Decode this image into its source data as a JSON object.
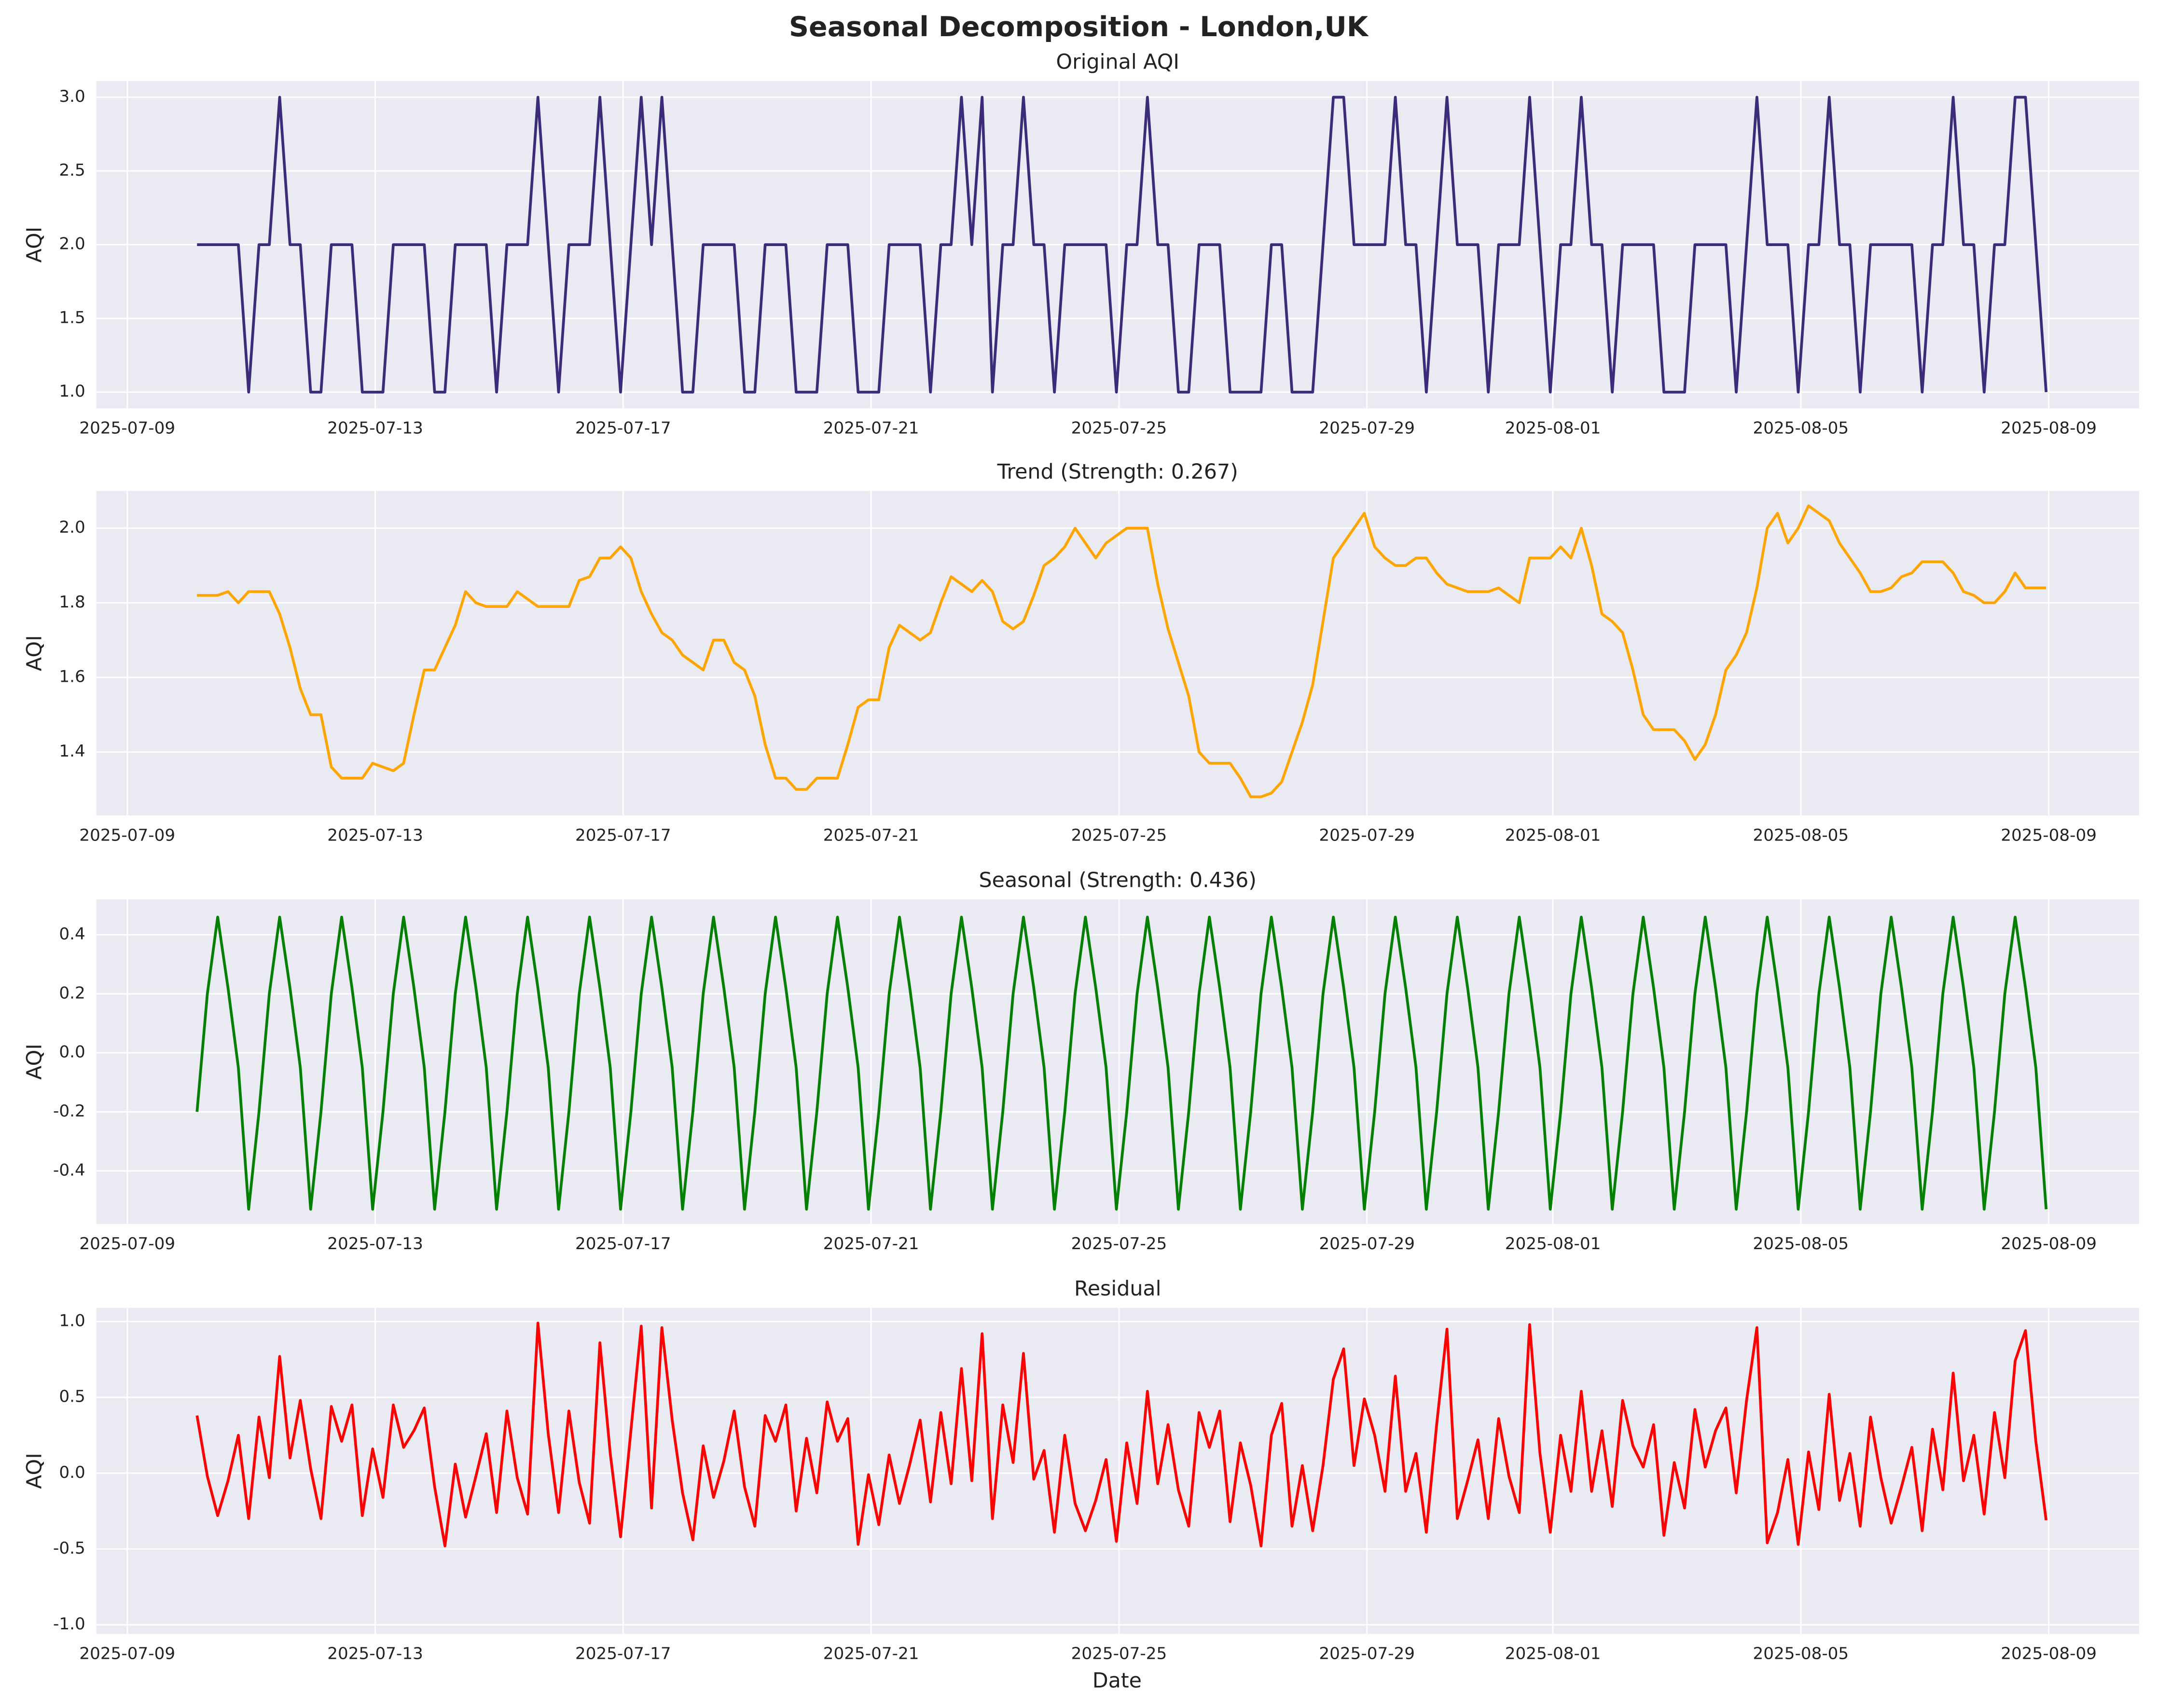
{
  "chart_data": {
    "title": "Seasonal Decomposition - London,UK",
    "xlabel": "Date",
    "grid": true,
    "xlim": [
      "2025-07-08 12:00",
      "2025-08-10 11:00"
    ],
    "xticks": [
      "2025-07-09",
      "2025-07-13",
      "2025-07-17",
      "2025-07-21",
      "2025-07-25",
      "2025-07-29",
      "2025-08-01",
      "2025-08-05",
      "2025-08-09"
    ],
    "x": [
      "2025-07-10 03:00",
      "2025-07-10 07:00",
      "2025-07-10 11:00",
      "2025-07-10 15:00",
      "2025-07-10 19:00",
      "2025-07-10 23:00",
      "2025-07-11 03:00",
      "2025-07-11 07:00",
      "2025-07-11 11:00",
      "2025-07-11 15:00",
      "2025-07-11 19:00",
      "2025-07-11 23:00",
      "2025-07-12 03:00",
      "2025-07-12 07:00",
      "2025-07-12 11:00",
      "2025-07-12 15:00",
      "2025-07-12 19:00",
      "2025-07-12 23:00",
      "2025-07-13 03:00",
      "2025-07-13 07:00",
      "2025-07-13 11:00",
      "2025-07-13 15:00",
      "2025-07-13 19:00",
      "2025-07-13 23:00",
      "2025-07-14 03:00",
      "2025-07-14 07:00",
      "2025-07-14 11:00",
      "2025-07-14 15:00",
      "2025-07-14 19:00",
      "2025-07-14 23:00",
      "2025-07-15 03:00",
      "2025-07-15 07:00",
      "2025-07-15 11:00",
      "2025-07-15 15:00",
      "2025-07-15 19:00",
      "2025-07-15 23:00",
      "2025-07-16 03:00",
      "2025-07-16 07:00",
      "2025-07-16 11:00",
      "2025-07-16 15:00",
      "2025-07-16 19:00",
      "2025-07-16 23:00",
      "2025-07-17 03:00",
      "2025-07-17 07:00",
      "2025-07-17 11:00",
      "2025-07-17 15:00",
      "2025-07-17 19:00",
      "2025-07-17 23:00",
      "2025-07-18 03:00",
      "2025-07-18 07:00",
      "2025-07-18 11:00",
      "2025-07-18 15:00",
      "2025-07-18 19:00",
      "2025-07-18 23:00",
      "2025-07-19 03:00",
      "2025-07-19 07:00",
      "2025-07-19 11:00",
      "2025-07-19 15:00",
      "2025-07-19 19:00",
      "2025-07-19 23:00",
      "2025-07-20 03:00",
      "2025-07-20 07:00",
      "2025-07-20 11:00",
      "2025-07-20 15:00",
      "2025-07-20 19:00",
      "2025-07-20 23:00",
      "2025-07-21 03:00",
      "2025-07-21 07:00",
      "2025-07-21 11:00",
      "2025-07-21 15:00",
      "2025-07-21 19:00",
      "2025-07-21 23:00",
      "2025-07-22 03:00",
      "2025-07-22 07:00",
      "2025-07-22 11:00",
      "2025-07-22 15:00",
      "2025-07-22 19:00",
      "2025-07-22 23:00",
      "2025-07-23 03:00",
      "2025-07-23 07:00",
      "2025-07-23 11:00",
      "2025-07-23 15:00",
      "2025-07-23 19:00",
      "2025-07-23 23:00",
      "2025-07-24 03:00",
      "2025-07-24 07:00",
      "2025-07-24 11:00",
      "2025-07-24 15:00",
      "2025-07-24 19:00",
      "2025-07-24 23:00",
      "2025-07-25 03:00",
      "2025-07-25 07:00",
      "2025-07-25 11:00",
      "2025-07-25 15:00",
      "2025-07-25 19:00",
      "2025-07-25 23:00",
      "2025-07-26 03:00",
      "2025-07-26 07:00",
      "2025-07-26 11:00",
      "2025-07-26 15:00",
      "2025-07-26 19:00",
      "2025-07-26 23:00",
      "2025-07-27 03:00",
      "2025-07-27 07:00",
      "2025-07-27 11:00",
      "2025-07-27 15:00",
      "2025-07-27 19:00",
      "2025-07-27 23:00",
      "2025-07-28 03:00",
      "2025-07-28 07:00",
      "2025-07-28 11:00",
      "2025-07-28 15:00",
      "2025-07-28 19:00",
      "2025-07-28 23:00",
      "2025-07-29 03:00",
      "2025-07-29 07:00",
      "2025-07-29 11:00",
      "2025-07-29 15:00",
      "2025-07-29 19:00",
      "2025-07-29 23:00",
      "2025-07-30 03:00",
      "2025-07-30 07:00",
      "2025-07-30 11:00",
      "2025-07-30 15:00",
      "2025-07-30 19:00",
      "2025-07-30 23:00",
      "2025-07-31 03:00",
      "2025-07-31 07:00",
      "2025-07-31 11:00",
      "2025-07-31 15:00",
      "2025-07-31 19:00",
      "2025-07-31 23:00",
      "2025-08-01 03:00",
      "2025-08-01 07:00",
      "2025-08-01 11:00",
      "2025-08-01 15:00",
      "2025-08-01 19:00",
      "2025-08-01 23:00",
      "2025-08-02 03:00",
      "2025-08-02 07:00",
      "2025-08-02 11:00",
      "2025-08-02 15:00",
      "2025-08-02 19:00",
      "2025-08-02 23:00",
      "2025-08-03 03:00",
      "2025-08-03 07:00",
      "2025-08-03 11:00",
      "2025-08-03 15:00",
      "2025-08-03 19:00",
      "2025-08-03 23:00",
      "2025-08-04 03:00",
      "2025-08-04 07:00",
      "2025-08-04 11:00",
      "2025-08-04 15:00",
      "2025-08-04 19:00",
      "2025-08-04 23:00",
      "2025-08-05 03:00",
      "2025-08-05 07:00",
      "2025-08-05 11:00",
      "2025-08-05 15:00",
      "2025-08-05 19:00",
      "2025-08-05 23:00",
      "2025-08-06 03:00",
      "2025-08-06 07:00",
      "2025-08-06 11:00",
      "2025-08-06 15:00",
      "2025-08-06 19:00",
      "2025-08-06 23:00",
      "2025-08-07 03:00",
      "2025-08-07 07:00",
      "2025-08-07 11:00",
      "2025-08-07 15:00",
      "2025-08-07 19:00",
      "2025-08-07 23:00",
      "2025-08-08 03:00",
      "2025-08-08 07:00",
      "2025-08-08 11:00",
      "2025-08-08 15:00",
      "2025-08-08 19:00",
      "2025-08-08 23:00"
    ],
    "panels": [
      {
        "type": "line",
        "title": "Original AQI",
        "ylabel": "AQI",
        "color": "#3b2b78",
        "ylim": [
          0.89,
          3.11
        ],
        "yticks": [
          {
            "value": 1,
            "label": "1.0"
          },
          1.5,
          {
            "value": 2,
            "label": "2.0"
          },
          2.5,
          {
            "value": 3,
            "label": "3.0"
          }
        ],
        "values": [
          2,
          2,
          2,
          2,
          2,
          1,
          2,
          2,
          3,
          2,
          2,
          1,
          1,
          2,
          2,
          2,
          1,
          1,
          1,
          2,
          2,
          2,
          2,
          1,
          1,
          2,
          2,
          2,
          2,
          1,
          2,
          2,
          2,
          3,
          2,
          1,
          2,
          2,
          2,
          3,
          2,
          1,
          2,
          3,
          2,
          3,
          2,
          1,
          1,
          2,
          2,
          2,
          2,
          1,
          1,
          2,
          2,
          2,
          1,
          1,
          1,
          2,
          2,
          2,
          1,
          1,
          1,
          2,
          2,
          2,
          2,
          1,
          2,
          2,
          3,
          2,
          3,
          1,
          2,
          2,
          3,
          2,
          2,
          1,
          2,
          2,
          2,
          2,
          2,
          1,
          2,
          2,
          3,
          2,
          2,
          1,
          1,
          2,
          2,
          2,
          1,
          1,
          1,
          1,
          2,
          2,
          1,
          1,
          1,
          2,
          3,
          3,
          2,
          2,
          2,
          2,
          3,
          2,
          2,
          1,
          2,
          3,
          2,
          2,
          2,
          1,
          2,
          2,
          2,
          3,
          2,
          1,
          2,
          2,
          3,
          2,
          2,
          1,
          2,
          2,
          2,
          2,
          1,
          1,
          1,
          2,
          2,
          2,
          2,
          1,
          2,
          3,
          2,
          2,
          2,
          1,
          2,
          2,
          3,
          2,
          2,
          1,
          2,
          2,
          2,
          2,
          2,
          1,
          2,
          2,
          3,
          2,
          2,
          1,
          2,
          2,
          3,
          3,
          2,
          1
        ]
      },
      {
        "type": "line",
        "title": "Trend (Strength: 0.267)",
        "ylabel": "AQI",
        "color": "#ffa500",
        "ylim": [
          1.23,
          2.1
        ],
        "yticks": [
          1.4,
          1.6,
          1.8,
          {
            "value": 2,
            "label": "2.0"
          }
        ],
        "values": [
          1.82,
          1.82,
          1.82,
          1.83,
          1.8,
          1.83,
          1.83,
          1.83,
          1.77,
          1.68,
          1.57,
          1.5,
          1.5,
          1.36,
          1.33,
          1.33,
          1.33,
          1.37,
          1.36,
          1.35,
          1.37,
          1.5,
          1.62,
          1.62,
          1.68,
          1.74,
          1.83,
          1.8,
          1.79,
          1.79,
          1.79,
          1.83,
          1.81,
          1.79,
          1.79,
          1.79,
          1.79,
          1.86,
          1.87,
          1.92,
          1.92,
          1.95,
          1.92,
          1.83,
          1.77,
          1.72,
          1.7,
          1.66,
          1.64,
          1.62,
          1.7,
          1.7,
          1.64,
          1.62,
          1.55,
          1.42,
          1.33,
          1.33,
          1.3,
          1.3,
          1.33,
          1.33,
          1.33,
          1.42,
          1.52,
          1.54,
          1.54,
          1.68,
          1.74,
          1.72,
          1.7,
          1.72,
          1.8,
          1.87,
          1.85,
          1.83,
          1.86,
          1.83,
          1.75,
          1.73,
          1.75,
          1.82,
          1.9,
          1.92,
          1.95,
          2.0,
          1.96,
          1.92,
          1.96,
          1.98,
          2.0,
          2.0,
          2.0,
          1.85,
          1.73,
          1.64,
          1.55,
          1.4,
          1.37,
          1.37,
          1.37,
          1.33,
          1.28,
          1.28,
          1.29,
          1.32,
          1.4,
          1.48,
          1.58,
          1.75,
          1.92,
          1.96,
          2.0,
          2.04,
          1.95,
          1.92,
          1.9,
          1.9,
          1.92,
          1.92,
          1.88,
          1.85,
          1.84,
          1.83,
          1.83,
          1.83,
          1.84,
          1.82,
          1.8,
          1.92,
          1.92,
          1.92,
          1.95,
          1.92,
          2.0,
          1.9,
          1.77,
          1.75,
          1.72,
          1.62,
          1.5,
          1.46,
          1.46,
          1.46,
          1.43,
          1.38,
          1.42,
          1.5,
          1.62,
          1.66,
          1.72,
          1.84,
          2.0,
          2.04,
          1.96,
          2.0,
          2.06,
          2.04,
          2.02,
          1.96,
          1.92,
          1.88,
          1.83,
          1.83,
          1.84,
          1.87,
          1.88,
          1.91,
          1.91,
          1.91,
          1.88,
          1.83,
          1.82,
          1.8,
          1.8,
          1.83,
          1.88,
          1.84,
          1.84,
          1.84
        ]
      },
      {
        "type": "line",
        "title": "Seasonal (Strength: 0.436)",
        "ylabel": "AQI",
        "color": "#008000",
        "ylim": [
          -0.58,
          0.52
        ],
        "yticks": [
          -0.4,
          -0.2,
          {
            "value": 0,
            "label": "0.0"
          },
          0.2,
          0.4
        ],
        "values": [
          -0.2,
          0.2,
          0.46,
          0.22,
          -0.05,
          -0.53,
          -0.2,
          0.2,
          0.46,
          0.22,
          -0.05,
          -0.53,
          -0.2,
          0.2,
          0.46,
          0.22,
          -0.05,
          -0.53,
          -0.2,
          0.2,
          0.46,
          0.22,
          -0.05,
          -0.53,
          -0.2,
          0.2,
          0.46,
          0.22,
          -0.05,
          -0.53,
          -0.2,
          0.2,
          0.46,
          0.22,
          -0.05,
          -0.53,
          -0.2,
          0.2,
          0.46,
          0.22,
          -0.05,
          -0.53,
          -0.2,
          0.2,
          0.46,
          0.22,
          -0.05,
          -0.53,
          -0.2,
          0.2,
          0.46,
          0.22,
          -0.05,
          -0.53,
          -0.2,
          0.2,
          0.46,
          0.22,
          -0.05,
          -0.53,
          -0.2,
          0.2,
          0.46,
          0.22,
          -0.05,
          -0.53,
          -0.2,
          0.2,
          0.46,
          0.22,
          -0.05,
          -0.53,
          -0.2,
          0.2,
          0.46,
          0.22,
          -0.05,
          -0.53,
          -0.2,
          0.2,
          0.46,
          0.22,
          -0.05,
          -0.53,
          -0.2,
          0.2,
          0.46,
          0.22,
          -0.05,
          -0.53,
          -0.2,
          0.2,
          0.46,
          0.22,
          -0.05,
          -0.53,
          -0.2,
          0.2,
          0.46,
          0.22,
          -0.05,
          -0.53,
          -0.2,
          0.2,
          0.46,
          0.22,
          -0.05,
          -0.53,
          -0.2,
          0.2,
          0.46,
          0.22,
          -0.05,
          -0.53,
          -0.2,
          0.2,
          0.46,
          0.22,
          -0.05,
          -0.53,
          -0.2,
          0.2,
          0.46,
          0.22,
          -0.05,
          -0.53,
          -0.2,
          0.2,
          0.46,
          0.22,
          -0.05,
          -0.53,
          -0.2,
          0.2,
          0.46,
          0.22,
          -0.05,
          -0.53,
          -0.2,
          0.2,
          0.46,
          0.22,
          -0.05,
          -0.53,
          -0.2,
          0.2,
          0.46,
          0.22,
          -0.05,
          -0.53,
          -0.2,
          0.2,
          0.46,
          0.22,
          -0.05,
          -0.53,
          -0.2,
          0.2,
          0.46,
          0.22,
          -0.05,
          -0.53,
          -0.2,
          0.2,
          0.46,
          0.22,
          -0.05,
          -0.53,
          -0.2,
          0.2,
          0.46,
          0.22,
          -0.05,
          -0.53,
          -0.2,
          0.2,
          0.46,
          0.22,
          -0.05,
          -0.53
        ]
      },
      {
        "type": "line",
        "title": "Residual",
        "ylabel": "AQI",
        "color": "#ff0000",
        "ylim": [
          -1.06,
          1.09
        ],
        "yticks": [
          {
            "value": -1,
            "label": "-1.0"
          },
          -0.5,
          {
            "value": 0,
            "label": "0.0"
          },
          0.5,
          {
            "value": 1,
            "label": "1.0"
          }
        ],
        "values": [
          0.38,
          -0.02,
          -0.28,
          -0.05,
          0.25,
          -0.3,
          0.37,
          -0.03,
          0.77,
          0.1,
          0.48,
          0.03,
          -0.3,
          0.44,
          0.21,
          0.45,
          -0.28,
          0.16,
          -0.16,
          0.45,
          0.17,
          0.28,
          0.43,
          -0.09,
          -0.48,
          0.06,
          -0.29,
          -0.02,
          0.26,
          -0.26,
          0.41,
          -0.03,
          -0.27,
          0.99,
          0.26,
          -0.26,
          0.41,
          -0.06,
          -0.33,
          0.86,
          0.13,
          -0.42,
          0.28,
          0.97,
          -0.23,
          0.96,
          0.35,
          -0.13,
          -0.44,
          0.18,
          -0.16,
          0.08,
          0.41,
          -0.09,
          -0.35,
          0.38,
          0.21,
          0.45,
          -0.25,
          0.23,
          -0.13,
          0.47,
          0.21,
          0.36,
          -0.47,
          -0.01,
          -0.34,
          0.12,
          -0.2,
          0.06,
          0.35,
          -0.19,
          0.4,
          -0.07,
          0.69,
          -0.05,
          0.92,
          -0.3,
          0.45,
          0.07,
          0.79,
          -0.04,
          0.15,
          -0.39,
          0.25,
          -0.2,
          -0.38,
          -0.18,
          0.09,
          -0.45,
          0.2,
          -0.2,
          0.54,
          -0.07,
          0.32,
          -0.11,
          -0.35,
          0.4,
          0.17,
          0.41,
          -0.32,
          0.2,
          -0.08,
          -0.48,
          0.25,
          0.46,
          -0.35,
          0.05,
          -0.38,
          0.05,
          0.62,
          0.82,
          0.05,
          0.49,
          0.25,
          -0.12,
          0.64,
          -0.12,
          0.13,
          -0.39,
          0.32,
          0.95,
          -0.3,
          -0.05,
          0.22,
          -0.3,
          0.36,
          -0.02,
          -0.26,
          0.98,
          0.13,
          -0.39,
          0.25,
          -0.12,
          0.54,
          -0.12,
          0.28,
          -0.22,
          0.48,
          0.18,
          0.04,
          0.32,
          -0.41,
          0.07,
          -0.23,
          0.42,
          0.04,
          0.28,
          0.43,
          -0.13,
          0.48,
          0.96,
          -0.46,
          -0.26,
          0.09,
          -0.47,
          0.14,
          -0.24,
          0.52,
          -0.18,
          0.13,
          -0.35,
          0.37,
          -0.03,
          -0.33,
          -0.09,
          0.17,
          -0.38,
          0.29,
          -0.11,
          0.66,
          -0.05,
          0.25,
          -0.27,
          0.4,
          -0.03,
          0.74,
          0.94,
          0.21,
          -0.31
        ]
      }
    ]
  }
}
